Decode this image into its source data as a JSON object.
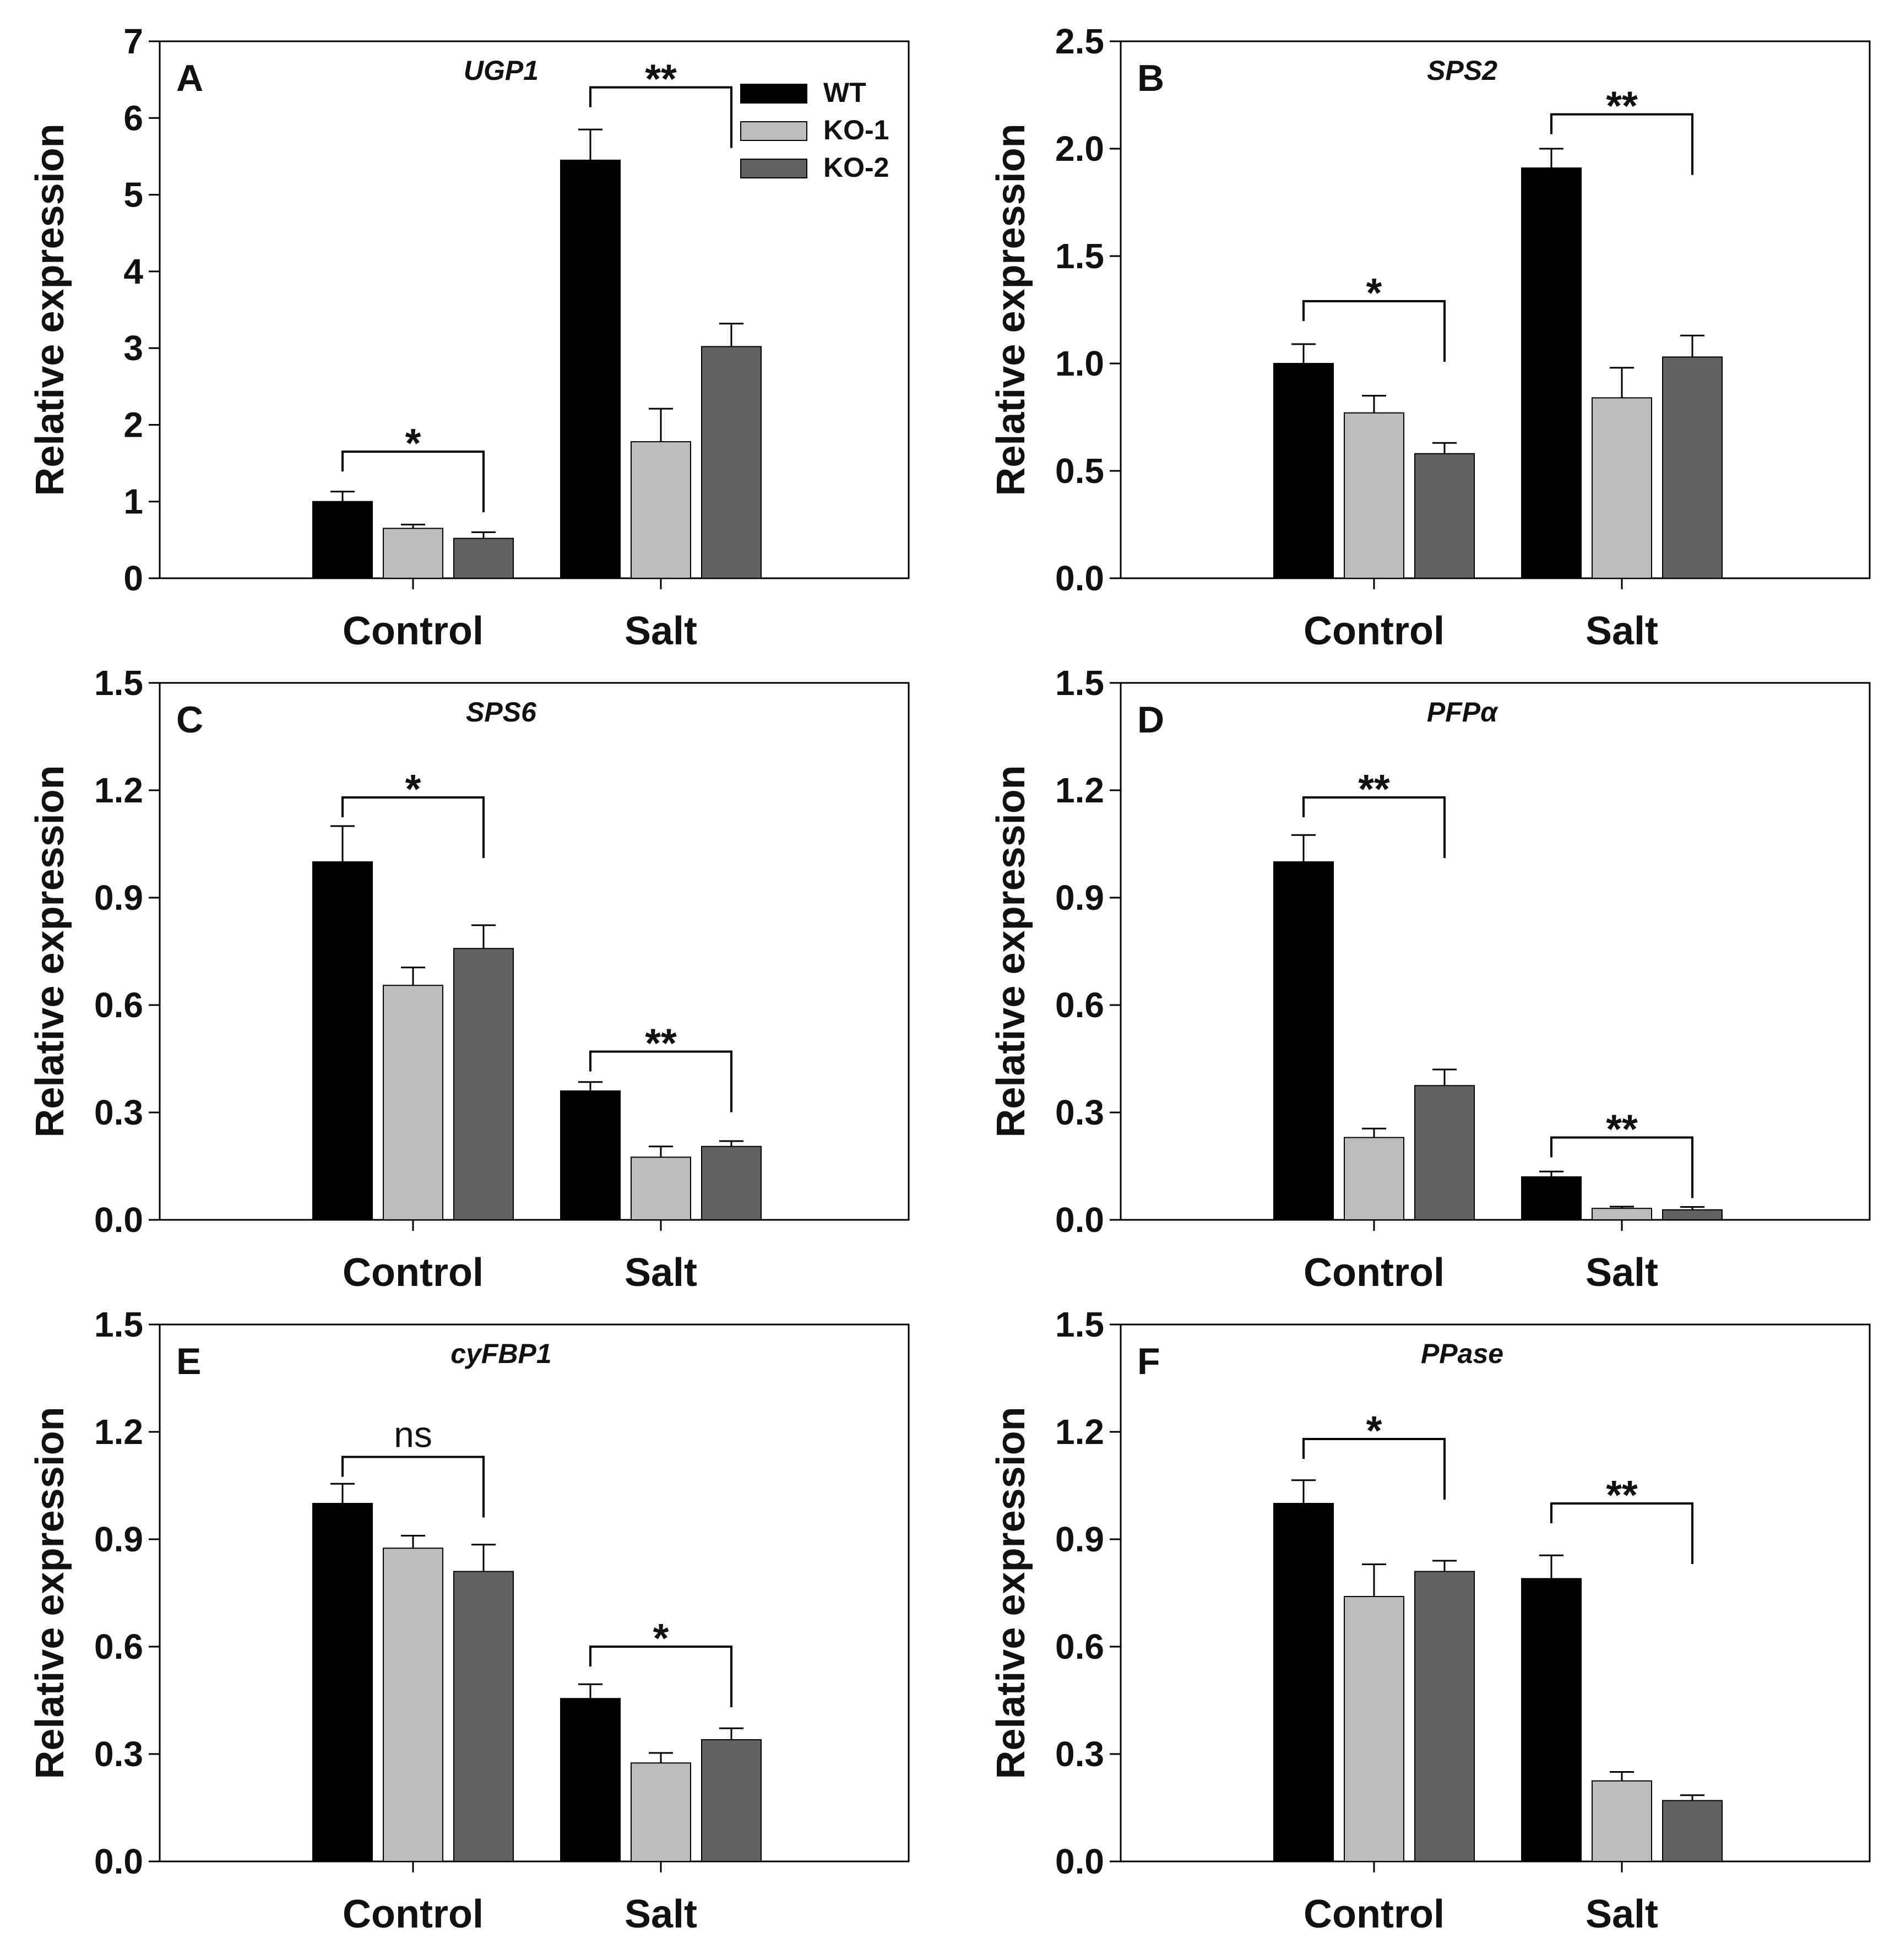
{
  "legend": [
    {
      "name": "WT",
      "color": "#000000"
    },
    {
      "name": "KO-1",
      "color": "#bdbdbd"
    },
    {
      "name": "KO-2",
      "color": "#616161"
    }
  ],
  "chart_data": [
    {
      "type": "bar",
      "panel": "A",
      "title": "UGP1",
      "ylabel": "Relative expression",
      "xlabel": "",
      "categories": [
        "Control",
        "Salt"
      ],
      "ylim": [
        0,
        7
      ],
      "yticks": [
        "0",
        "1",
        "2",
        "3",
        "4",
        "5",
        "6",
        "7"
      ],
      "series": [
        {
          "name": "WT",
          "values": [
            1.0,
            5.45
          ],
          "errors": [
            0.13,
            0.4
          ]
        },
        {
          "name": "KO-1",
          "values": [
            0.65,
            1.78
          ],
          "errors": [
            0.05,
            0.43
          ]
        },
        {
          "name": "KO-2",
          "values": [
            0.52,
            3.02
          ],
          "errors": [
            0.08,
            0.3
          ]
        }
      ],
      "significance": [
        {
          "category": "Control",
          "label": "*",
          "level": 1.65
        },
        {
          "category": "Salt",
          "label": "**",
          "level": 6.4
        }
      ]
    },
    {
      "type": "bar",
      "panel": "B",
      "title": "SPS2",
      "ylabel": "Relative expression",
      "xlabel": "",
      "categories": [
        "Control",
        "Salt"
      ],
      "ylim": [
        0,
        2.5
      ],
      "yticks": [
        "0.0",
        "0.5",
        "1.0",
        "1.5",
        "2.0",
        "2.5"
      ],
      "series": [
        {
          "name": "WT",
          "values": [
            1.0,
            1.91
          ],
          "errors": [
            0.09,
            0.09
          ]
        },
        {
          "name": "KO-1",
          "values": [
            0.77,
            0.84
          ],
          "errors": [
            0.08,
            0.14
          ]
        },
        {
          "name": "KO-2",
          "values": [
            0.58,
            1.03
          ],
          "errors": [
            0.05,
            0.1
          ]
        }
      ],
      "significance": [
        {
          "category": "Control",
          "label": "*",
          "level": 1.29
        },
        {
          "category": "Salt",
          "label": "**",
          "level": 2.16
        }
      ]
    },
    {
      "type": "bar",
      "panel": "C",
      "title": "SPS6",
      "ylabel": "Relative expression",
      "xlabel": "",
      "categories": [
        "Control",
        "Salt"
      ],
      "ylim": [
        0,
        1.5
      ],
      "yticks": [
        "0.0",
        "0.3",
        "0.6",
        "0.9",
        "1.2",
        "1.5"
      ],
      "series": [
        {
          "name": "WT",
          "values": [
            1.0,
            0.36
          ],
          "errors": [
            0.1,
            0.025
          ]
        },
        {
          "name": "KO-1",
          "values": [
            0.655,
            0.175
          ],
          "errors": [
            0.05,
            0.03
          ]
        },
        {
          "name": "KO-2",
          "values": [
            0.758,
            0.205
          ],
          "errors": [
            0.065,
            0.015
          ]
        }
      ],
      "significance": [
        {
          "category": "Control",
          "label": "*",
          "level": 1.18
        },
        {
          "category": "Salt",
          "label": "**",
          "level": 0.47
        }
      ]
    },
    {
      "type": "bar",
      "panel": "D",
      "title": "PFPα",
      "ylabel": "Relative expression",
      "xlabel": "",
      "categories": [
        "Control",
        "Salt"
      ],
      "ylim": [
        0,
        1.5
      ],
      "yticks": [
        "0.0",
        "0.3",
        "0.6",
        "0.9",
        "1.2",
        "1.5"
      ],
      "series": [
        {
          "name": "WT",
          "values": [
            1.0,
            0.12
          ],
          "errors": [
            0.075,
            0.015
          ]
        },
        {
          "name": "KO-1",
          "values": [
            0.23,
            0.032
          ],
          "errors": [
            0.025,
            0.005
          ]
        },
        {
          "name": "KO-2",
          "values": [
            0.375,
            0.028
          ],
          "errors": [
            0.045,
            0.008
          ]
        }
      ],
      "significance": [
        {
          "category": "Control",
          "label": "**",
          "level": 1.18
        },
        {
          "category": "Salt",
          "label": "**",
          "level": 0.23
        }
      ]
    },
    {
      "type": "bar",
      "panel": "E",
      "title": "cyFBP1",
      "ylabel": "Relative expression",
      "xlabel": "",
      "categories": [
        "Control",
        "Salt"
      ],
      "ylim": [
        0,
        1.5
      ],
      "yticks": [
        "0.0",
        "0.3",
        "0.6",
        "0.9",
        "1.2",
        "1.5"
      ],
      "series": [
        {
          "name": "WT",
          "values": [
            1.0,
            0.455
          ],
          "errors": [
            0.055,
            0.04
          ]
        },
        {
          "name": "KO-1",
          "values": [
            0.875,
            0.275
          ],
          "errors": [
            0.035,
            0.028
          ]
        },
        {
          "name": "KO-2",
          "values": [
            0.81,
            0.34
          ],
          "errors": [
            0.075,
            0.032
          ]
        }
      ],
      "significance": [
        {
          "category": "Control",
          "label": "ns",
          "level": 1.13
        },
        {
          "category": "Salt",
          "label": "*",
          "level": 0.6
        }
      ]
    },
    {
      "type": "bar",
      "panel": "F",
      "title": "PPase",
      "ylabel": "Relative expression",
      "xlabel": "",
      "categories": [
        "Control",
        "Salt"
      ],
      "ylim": [
        0,
        1.5
      ],
      "yticks": [
        "0.0",
        "0.3",
        "0.6",
        "0.9",
        "1.2",
        "1.5"
      ],
      "series": [
        {
          "name": "WT",
          "values": [
            1.0,
            0.79
          ],
          "errors": [
            0.065,
            0.065
          ]
        },
        {
          "name": "KO-1",
          "values": [
            0.74,
            0.225
          ],
          "errors": [
            0.09,
            0.025
          ]
        },
        {
          "name": "KO-2",
          "values": [
            0.81,
            0.17
          ],
          "errors": [
            0.03,
            0.015
          ]
        }
      ],
      "significance": [
        {
          "category": "Control",
          "label": "*",
          "level": 1.18
        },
        {
          "category": "Salt",
          "label": "**",
          "level": 1.0
        }
      ]
    }
  ]
}
